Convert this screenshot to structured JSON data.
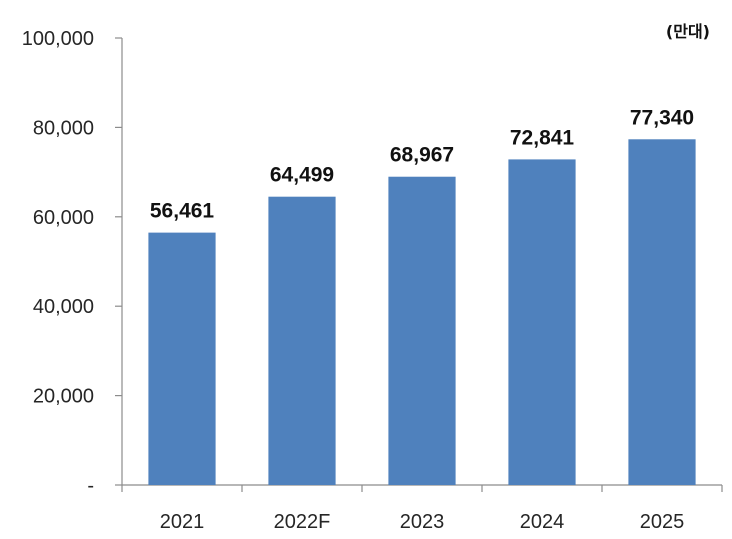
{
  "chart_data": {
    "type": "bar",
    "title": "",
    "unit": "(만대)",
    "xlabel": "",
    "ylabel": "",
    "categories": [
      "2021",
      "2022F",
      "2023",
      "2024",
      "2025"
    ],
    "values": [
      56461,
      64499,
      68967,
      72841,
      77340
    ],
    "value_labels": [
      "56,461",
      "64,499",
      "68,967",
      "72,841",
      "77,340"
    ],
    "ylim": [
      0,
      100000
    ],
    "yticks": [
      0,
      20000,
      40000,
      60000,
      80000,
      100000
    ],
    "ytick_labels": [
      "-",
      "20,000",
      "40,000",
      "60,000",
      "80,000",
      "100,000"
    ],
    "grid": false,
    "legend": "none",
    "bar_color": "#4f81bd"
  }
}
